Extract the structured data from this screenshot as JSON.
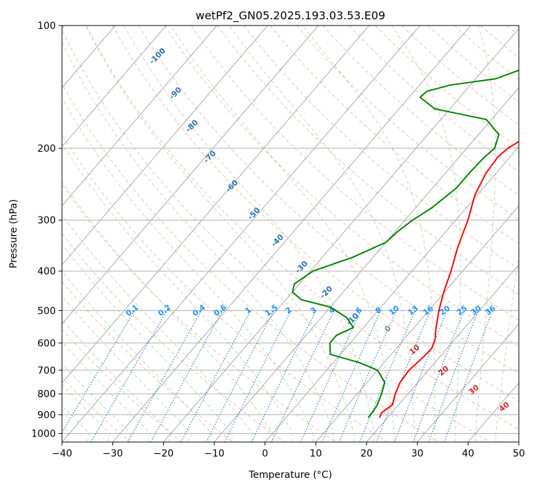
{
  "chart_data": {
    "type": "line",
    "title": "wetPf2_GN05.2025.193.03.53.E09",
    "xlabel": "Temperature (°C)",
    "ylabel": "Pressure (hPa)",
    "xlim": [
      -40,
      50
    ],
    "ylim": [
      1050,
      100
    ],
    "y_scale": "log",
    "grid": true,
    "x_ticks": [
      -40,
      -30,
      -20,
      -10,
      0,
      10,
      20,
      30,
      40,
      50
    ],
    "y_ticks": [
      100,
      200,
      300,
      400,
      500,
      600,
      700,
      800,
      900,
      1000
    ],
    "dry_adiabat_labels": [
      -100,
      -90,
      -80,
      -70,
      -60,
      -50,
      -40,
      -30,
      -20,
      -10
    ],
    "mixing_ratio_labels": [
      "0.1",
      "0.2",
      "0.4",
      "0.6",
      "1",
      "1.5",
      "2",
      "3",
      "4",
      "6",
      "8",
      "10",
      "13",
      "16",
      "20",
      "25",
      "30",
      "36"
    ],
    "moist_adiabat_labels": [
      "0",
      "10",
      "20",
      "30",
      "40"
    ],
    "series": [
      {
        "kind": "temperature",
        "color": "#ff0000",
        "points": [
          [
            18.4,
            915
          ],
          [
            18.0,
            890
          ],
          [
            18.8,
            850
          ],
          [
            17.5,
            800
          ],
          [
            16.5,
            750
          ],
          [
            16.2,
            700
          ],
          [
            16.8,
            650
          ],
          [
            17.0,
            620
          ],
          [
            16.2,
            590
          ],
          [
            14.3,
            550
          ],
          [
            12.0,
            500
          ],
          [
            9.8,
            450
          ],
          [
            7.7,
            400
          ],
          [
            5.0,
            350
          ],
          [
            2.4,
            300
          ],
          [
            -0.5,
            260
          ],
          [
            -2.0,
            230
          ],
          [
            -2.4,
            210
          ],
          [
            -1.9,
            200
          ],
          [
            -0.5,
            190
          ],
          [
            5.0,
            175
          ],
          [
            8.0,
            160
          ],
          [
            10.0,
            150
          ],
          [
            14.0,
            130
          ],
          [
            17.5,
            115
          ],
          [
            20.0,
            100
          ]
        ]
      },
      {
        "kind": "dewpoint",
        "color": "#008000",
        "points": [
          [
            16.2,
            915
          ],
          [
            16.1,
            880
          ],
          [
            15.8,
            850
          ],
          [
            14.8,
            800
          ],
          [
            13.5,
            750
          ],
          [
            10.0,
            700
          ],
          [
            5.0,
            670
          ],
          [
            -2.0,
            640
          ],
          [
            -4.0,
            600
          ],
          [
            -4.0,
            575
          ],
          [
            -2.0,
            550
          ],
          [
            -5.0,
            520
          ],
          [
            -10.0,
            490
          ],
          [
            -17.0,
            470
          ],
          [
            -20.0,
            450
          ],
          [
            -21.0,
            430
          ],
          [
            -19.5,
            400
          ],
          [
            -14.0,
            370
          ],
          [
            -10.0,
            340
          ],
          [
            -9.5,
            320
          ],
          [
            -8.5,
            300
          ],
          [
            -6.8,
            280
          ],
          [
            -5.3,
            250
          ],
          [
            -5.3,
            230
          ],
          [
            -5.0,
            210
          ],
          [
            -4.5,
            200
          ],
          [
            -6.0,
            185
          ],
          [
            -11.0,
            170
          ],
          [
            -23.0,
            160
          ],
          [
            -27.8,
            150
          ],
          [
            -27.5,
            145
          ],
          [
            -24.0,
            140
          ],
          [
            -16.0,
            135
          ],
          [
            -11.0,
            125
          ],
          [
            -10.0,
            120
          ],
          [
            -10.5,
            115
          ],
          [
            -9.5,
            110
          ],
          [
            -3.5,
            100
          ]
        ]
      }
    ]
  }
}
